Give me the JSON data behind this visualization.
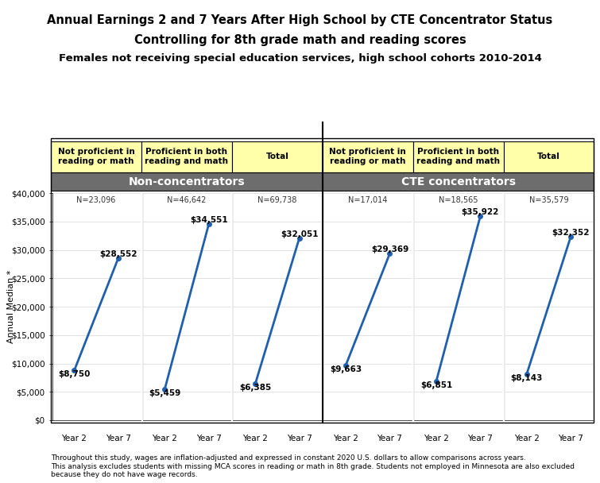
{
  "title_line1": "Annual Earnings 2 and 7 Years After High School by CTE Concentrator Status",
  "title_line2": "Controlling for 8th grade math and reading scores",
  "title_line3": "Females not receiving special education services, high school cohorts 2010-2014",
  "group_headers": [
    "Non-concentrators",
    "CTE concentrators"
  ],
  "col_headers": [
    "Not proficient in\nreading or math",
    "Proficient in both\nreading and math",
    "Total",
    "Not proficient in\nreading or math",
    "Proficient in both\nreading and math",
    "Total"
  ],
  "n_labels": [
    "N=23,096",
    "N=46,642",
    "N=69,738",
    "N=17,014",
    "N=18,565",
    "N=35,579"
  ],
  "year2_values": [
    8750,
    5459,
    6385,
    9663,
    6851,
    8143
  ],
  "year7_values": [
    28552,
    34551,
    32051,
    29369,
    35922,
    32352
  ],
  "year2_labels": [
    "$8,750",
    "$5,459",
    "$6,385",
    "$9,663",
    "$6,851",
    "$8,143"
  ],
  "year7_labels": [
    "$28,552",
    "$34,551",
    "$32,051",
    "$29,369",
    "$35,922",
    "$32,352"
  ],
  "ylabel": "Annual Median *",
  "ylim": [
    0,
    40000
  ],
  "yticks": [
    0,
    5000,
    10000,
    15000,
    20000,
    25000,
    30000,
    35000,
    40000
  ],
  "ytick_labels": [
    "$0",
    "$5,000",
    "$10,000",
    "$15,000",
    "$20,000",
    "$25,000",
    "$30,000",
    "$35,000",
    "$40,000"
  ],
  "line_color": "#1F5FAD",
  "header_bg_color": "#6D6D6D",
  "header_text_color": "#FFFFFF",
  "subheader_bg_color": "#FFFFAA",
  "subheader_text_color": "#000000",
  "col_divider_color": "#FFFFFF",
  "footnote": "Throughout this study, wages are inflation-adjusted and expressed in constant 2020 U.S. dollars to allow comparisons across years.\nThis analysis excludes students with missing MCA scores in reading or math in 8th grade. Students not employed in Minnesota are also excluded\nbecause they do not have wage records.",
  "bg_color": "#FFFFFF",
  "plot_bg_color": "#FFFFFF",
  "border_color": "#000000"
}
